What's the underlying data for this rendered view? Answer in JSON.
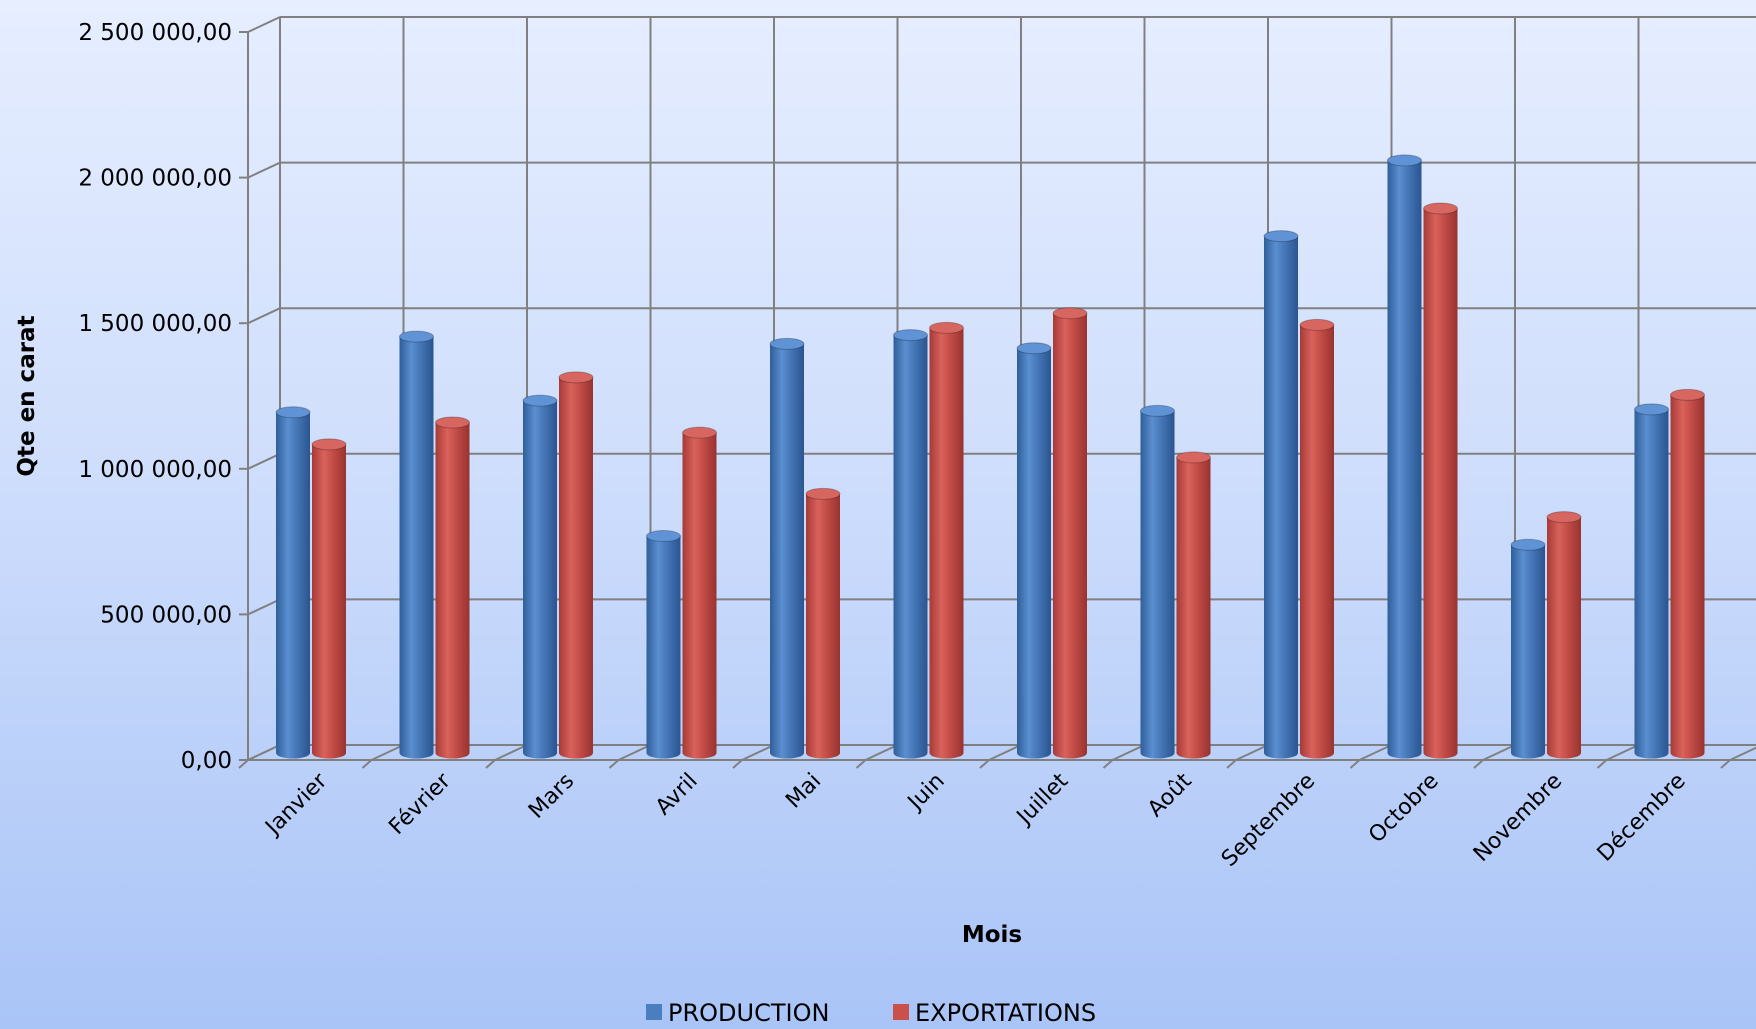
{
  "chart_data": {
    "type": "bar",
    "title": "",
    "xlabel": "Mois",
    "ylabel": "Qte en carat",
    "categories": [
      "Janvier",
      "Février",
      "Mars",
      "Avril",
      "Mai",
      "Juin",
      "Juillet",
      "Août",
      "Septembre",
      "Octobre",
      "Novembre",
      "Décembre"
    ],
    "series": [
      {
        "name": "PRODUCTION",
        "color": "#4a7ebf",
        "values": [
          1170000,
          1430000,
          1210000,
          745000,
          1405000,
          1435000,
          1390000,
          1175000,
          1775000,
          2035000,
          715000,
          1180000
        ]
      },
      {
        "name": "EXPORTATIONS",
        "color": "#c9504b",
        "values": [
          1060000,
          1135000,
          1290000,
          1100000,
          890000,
          1460000,
          1510000,
          1015000,
          1470000,
          1870000,
          810000,
          1230000
        ]
      }
    ],
    "ylim": [
      0,
      2500000
    ],
    "yticks": [
      {
        "value": 0,
        "label": "0,00"
      },
      {
        "value": 500000,
        "label": "500 000,00"
      },
      {
        "value": 1000000,
        "label": "1 000 000,00"
      },
      {
        "value": 1500000,
        "label": "1 500 000,00"
      },
      {
        "value": 2000000,
        "label": "2 000 000,00"
      },
      {
        "value": 2500000,
        "label": "2 500 000,00"
      }
    ],
    "grid": true,
    "legend_position": "bottom"
  }
}
